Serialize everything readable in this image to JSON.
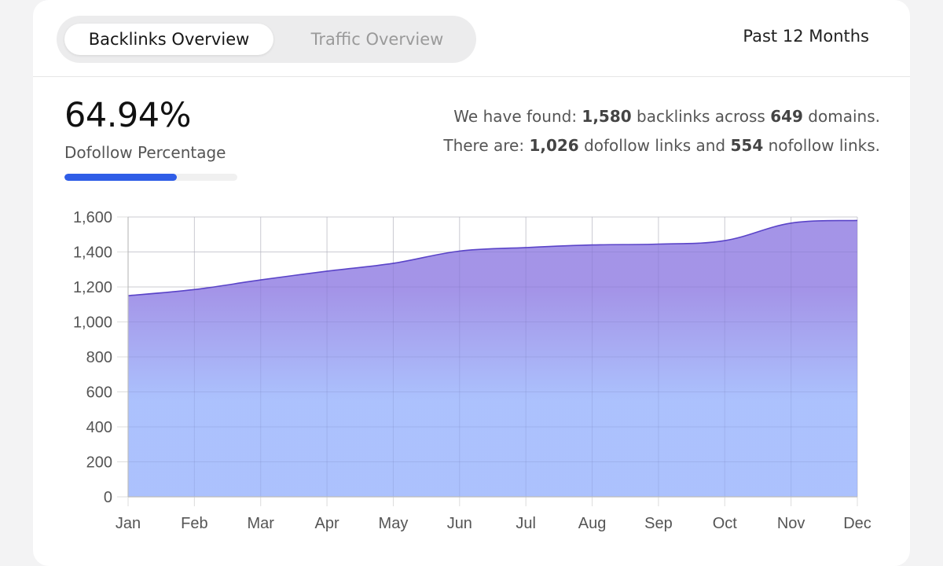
{
  "tabs": [
    {
      "label": "Backlinks Overview",
      "active": true
    },
    {
      "label": "Traffic Overview",
      "active": false
    }
  ],
  "period_label": "Past 12 Months",
  "dofollow": {
    "percent_text": "64.94%",
    "label": "Dofollow Percentage",
    "fraction": 0.6494
  },
  "summary": {
    "line1_prefix": "We have found: ",
    "backlinks": "1,580",
    "line1_mid": " backlinks across ",
    "domains": "649",
    "line1_suffix": " domains.",
    "line2_prefix": "There are: ",
    "dofollow_count": "1,026",
    "line2_mid": " dofollow links and ",
    "nofollow_count": "554",
    "line2_suffix": " nofollow links."
  },
  "colors": {
    "accent": "#2f5de7",
    "area_top": "#9f8ee6",
    "area_bottom": "#a7befd",
    "line": "#5a44c8"
  },
  "chart_data": {
    "type": "area",
    "categories": [
      "Jan",
      "Feb",
      "Mar",
      "Apr",
      "May",
      "Jun",
      "Jul",
      "Aug",
      "Sep",
      "Oct",
      "Nov",
      "Dec"
    ],
    "values": [
      1150,
      1185,
      1240,
      1290,
      1335,
      1405,
      1425,
      1440,
      1445,
      1465,
      1565,
      1580
    ],
    "ylim": [
      0,
      1600
    ],
    "yticks": [
      0,
      200,
      400,
      600,
      800,
      1000,
      1200,
      1400,
      1600
    ],
    "ytick_labels": [
      "0",
      "200",
      "400",
      "600",
      "800",
      "1,000",
      "1,200",
      "1,400",
      "1,600"
    ],
    "grid": true,
    "legend": "none"
  }
}
